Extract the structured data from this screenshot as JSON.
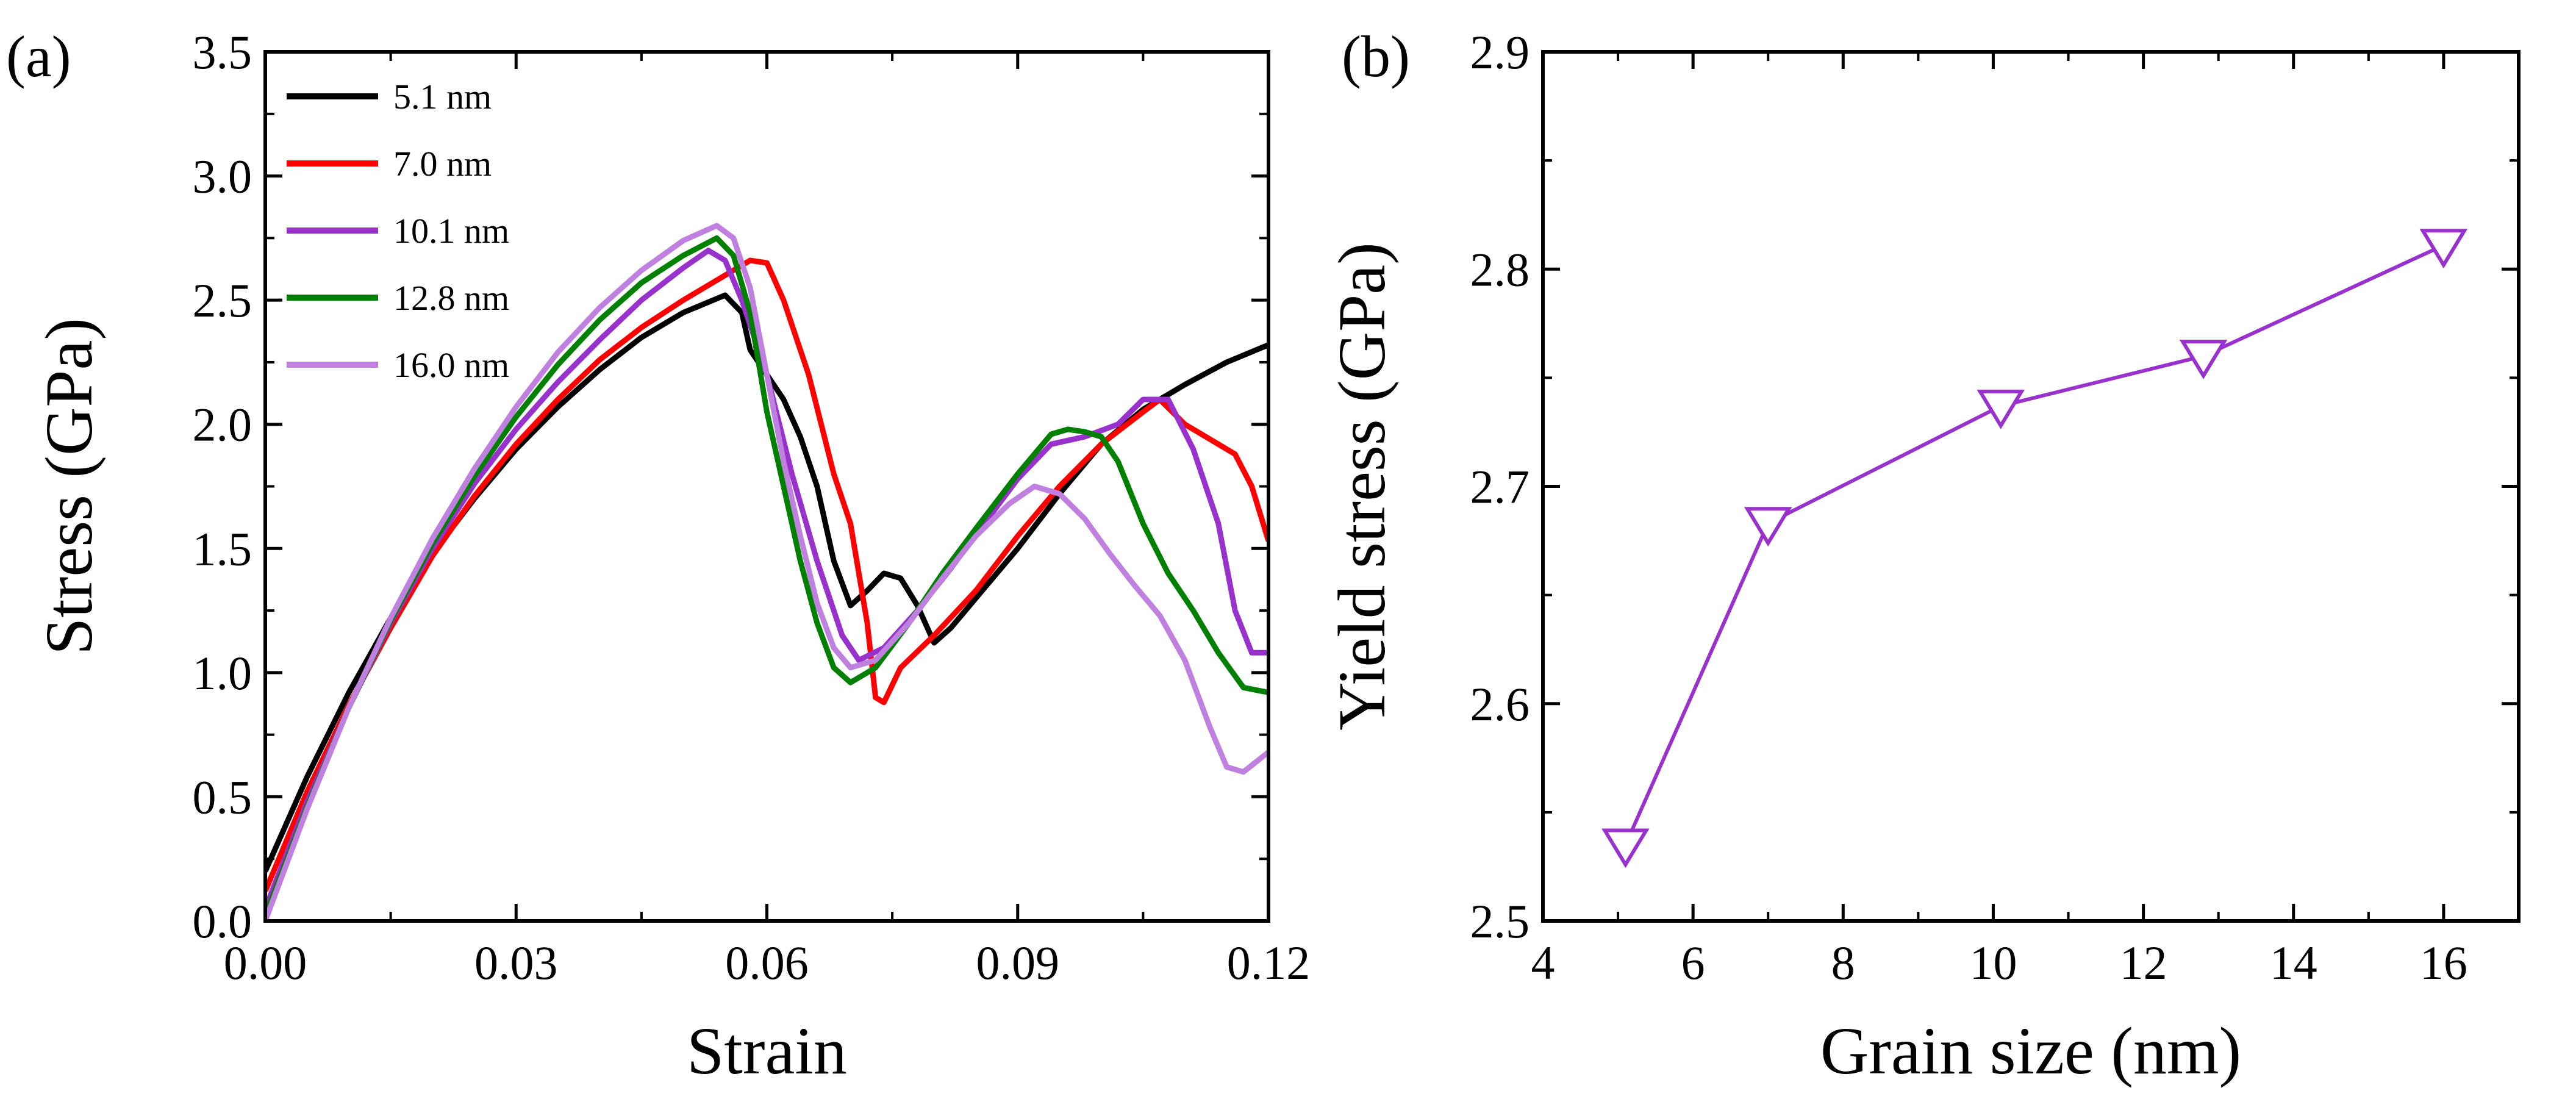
{
  "chart_data": [
    {
      "panel": "(a)",
      "type": "line",
      "xlabel": "Strain",
      "ylabel": "Stress (GPa)",
      "xlim": [
        0,
        0.12
      ],
      "ylim": [
        0,
        3.5
      ],
      "xticks": [
        "0.00",
        "0.03",
        "0.06",
        "0.09",
        "0.12"
      ],
      "yticks": [
        "0.0",
        "0.5",
        "1.0",
        "1.5",
        "2.0",
        "2.5",
        "3.0",
        "3.5"
      ],
      "legend_position": "top-left",
      "series": [
        {
          "name": "5.1 nm",
          "color": "#000000",
          "points": [
            [
              0,
              0.2
            ],
            [
              0.005,
              0.58
            ],
            [
              0.01,
              0.92
            ],
            [
              0.015,
              1.22
            ],
            [
              0.02,
              1.48
            ],
            [
              0.025,
              1.7
            ],
            [
              0.03,
              1.9
            ],
            [
              0.035,
              2.07
            ],
            [
              0.04,
              2.22
            ],
            [
              0.045,
              2.35
            ],
            [
              0.05,
              2.45
            ],
            [
              0.055,
              2.52
            ],
            [
              0.057,
              2.45
            ],
            [
              0.058,
              2.3
            ],
            [
              0.06,
              2.2
            ],
            [
              0.062,
              2.1
            ],
            [
              0.064,
              1.95
            ],
            [
              0.066,
              1.75
            ],
            [
              0.068,
              1.45
            ],
            [
              0.07,
              1.27
            ],
            [
              0.072,
              1.33
            ],
            [
              0.074,
              1.4
            ],
            [
              0.076,
              1.38
            ],
            [
              0.078,
              1.27
            ],
            [
              0.08,
              1.12
            ],
            [
              0.082,
              1.18
            ],
            [
              0.085,
              1.3
            ],
            [
              0.09,
              1.5
            ],
            [
              0.095,
              1.72
            ],
            [
              0.1,
              1.92
            ],
            [
              0.105,
              2.06
            ],
            [
              0.11,
              2.16
            ],
            [
              0.115,
              2.25
            ],
            [
              0.12,
              2.32
            ]
          ]
        },
        {
          "name": "7.0 nm",
          "color": "#ff0000",
          "points": [
            [
              0,
              0.12
            ],
            [
              0.005,
              0.52
            ],
            [
              0.01,
              0.87
            ],
            [
              0.015,
              1.18
            ],
            [
              0.02,
              1.47
            ],
            [
              0.025,
              1.71
            ],
            [
              0.03,
              1.92
            ],
            [
              0.035,
              2.1
            ],
            [
              0.04,
              2.26
            ],
            [
              0.045,
              2.39
            ],
            [
              0.05,
              2.5
            ],
            [
              0.055,
              2.6
            ],
            [
              0.058,
              2.66
            ],
            [
              0.06,
              2.65
            ],
            [
              0.062,
              2.5
            ],
            [
              0.065,
              2.2
            ],
            [
              0.068,
              1.8
            ],
            [
              0.07,
              1.6
            ],
            [
              0.072,
              1.2
            ],
            [
              0.073,
              0.9
            ],
            [
              0.074,
              0.88
            ],
            [
              0.076,
              1.02
            ],
            [
              0.08,
              1.15
            ],
            [
              0.085,
              1.33
            ],
            [
              0.09,
              1.55
            ],
            [
              0.095,
              1.75
            ],
            [
              0.1,
              1.92
            ],
            [
              0.105,
              2.05
            ],
            [
              0.107,
              2.1
            ],
            [
              0.11,
              2.0
            ],
            [
              0.113,
              1.94
            ],
            [
              0.116,
              1.88
            ],
            [
              0.118,
              1.75
            ],
            [
              0.12,
              1.53
            ]
          ]
        },
        {
          "name": "10.1 nm",
          "color": "#9932cc",
          "points": [
            [
              0,
              0.05
            ],
            [
              0.005,
              0.48
            ],
            [
              0.01,
              0.86
            ],
            [
              0.015,
              1.2
            ],
            [
              0.02,
              1.5
            ],
            [
              0.025,
              1.76
            ],
            [
              0.03,
              1.98
            ],
            [
              0.035,
              2.17
            ],
            [
              0.04,
              2.34
            ],
            [
              0.045,
              2.5
            ],
            [
              0.05,
              2.63
            ],
            [
              0.053,
              2.7
            ],
            [
              0.055,
              2.66
            ],
            [
              0.057,
              2.5
            ],
            [
              0.06,
              2.2
            ],
            [
              0.063,
              1.8
            ],
            [
              0.066,
              1.45
            ],
            [
              0.069,
              1.15
            ],
            [
              0.071,
              1.05
            ],
            [
              0.074,
              1.1
            ],
            [
              0.078,
              1.25
            ],
            [
              0.082,
              1.42
            ],
            [
              0.086,
              1.6
            ],
            [
              0.09,
              1.78
            ],
            [
              0.094,
              1.92
            ],
            [
              0.098,
              1.95
            ],
            [
              0.102,
              2.0
            ],
            [
              0.105,
              2.1
            ],
            [
              0.108,
              2.1
            ],
            [
              0.111,
              1.9
            ],
            [
              0.114,
              1.6
            ],
            [
              0.116,
              1.25
            ],
            [
              0.118,
              1.08
            ],
            [
              0.12,
              1.08
            ]
          ]
        },
        {
          "name": "12.8 nm",
          "color": "#008000",
          "points": [
            [
              0,
              0.02
            ],
            [
              0.005,
              0.46
            ],
            [
              0.01,
              0.86
            ],
            [
              0.015,
              1.21
            ],
            [
              0.02,
              1.52
            ],
            [
              0.025,
              1.79
            ],
            [
              0.03,
              2.03
            ],
            [
              0.035,
              2.24
            ],
            [
              0.04,
              2.42
            ],
            [
              0.045,
              2.57
            ],
            [
              0.05,
              2.68
            ],
            [
              0.054,
              2.75
            ],
            [
              0.056,
              2.68
            ],
            [
              0.058,
              2.45
            ],
            [
              0.06,
              2.05
            ],
            [
              0.062,
              1.75
            ],
            [
              0.064,
              1.45
            ],
            [
              0.066,
              1.2
            ],
            [
              0.068,
              1.02
            ],
            [
              0.07,
              0.96
            ],
            [
              0.073,
              1.02
            ],
            [
              0.077,
              1.2
            ],
            [
              0.081,
              1.4
            ],
            [
              0.085,
              1.58
            ],
            [
              0.09,
              1.8
            ],
            [
              0.094,
              1.96
            ],
            [
              0.096,
              1.98
            ],
            [
              0.098,
              1.97
            ],
            [
              0.1,
              1.95
            ],
            [
              0.102,
              1.85
            ],
            [
              0.105,
              1.6
            ],
            [
              0.108,
              1.4
            ],
            [
              0.111,
              1.25
            ],
            [
              0.114,
              1.08
            ],
            [
              0.117,
              0.94
            ],
            [
              0.12,
              0.92
            ]
          ]
        },
        {
          "name": "16.0 nm",
          "color": "#c080e0",
          "points": [
            [
              0,
              0.0
            ],
            [
              0.005,
              0.45
            ],
            [
              0.01,
              0.86
            ],
            [
              0.015,
              1.22
            ],
            [
              0.02,
              1.54
            ],
            [
              0.025,
              1.82
            ],
            [
              0.03,
              2.07
            ],
            [
              0.035,
              2.29
            ],
            [
              0.04,
              2.47
            ],
            [
              0.045,
              2.62
            ],
            [
              0.05,
              2.74
            ],
            [
              0.054,
              2.8
            ],
            [
              0.056,
              2.75
            ],
            [
              0.058,
              2.55
            ],
            [
              0.06,
              2.2
            ],
            [
              0.062,
              1.85
            ],
            [
              0.064,
              1.55
            ],
            [
              0.066,
              1.28
            ],
            [
              0.068,
              1.1
            ],
            [
              0.07,
              1.02
            ],
            [
              0.073,
              1.05
            ],
            [
              0.077,
              1.2
            ],
            [
              0.081,
              1.38
            ],
            [
              0.085,
              1.55
            ],
            [
              0.089,
              1.68
            ],
            [
              0.092,
              1.75
            ],
            [
              0.095,
              1.72
            ],
            [
              0.098,
              1.62
            ],
            [
              0.101,
              1.48
            ],
            [
              0.104,
              1.35
            ],
            [
              0.107,
              1.23
            ],
            [
              0.11,
              1.05
            ],
            [
              0.113,
              0.78
            ],
            [
              0.115,
              0.62
            ],
            [
              0.117,
              0.6
            ],
            [
              0.12,
              0.68
            ]
          ]
        }
      ]
    },
    {
      "panel": "(b)",
      "type": "line",
      "marker": "open-triangle-down",
      "color": "#9932cc",
      "xlabel": "Grain size (nm)",
      "ylabel": "Yield stress (GPa)",
      "xlim": [
        4,
        17
      ],
      "ylim": [
        2.5,
        2.9
      ],
      "xticks": [
        "4",
        "6",
        "8",
        "10",
        "12",
        "14",
        "16"
      ],
      "yticks": [
        "2.5",
        "2.6",
        "2.7",
        "2.8",
        "2.9"
      ],
      "x": [
        5.1,
        7.0,
        10.1,
        12.8,
        16.0
      ],
      "y": [
        2.535,
        2.683,
        2.737,
        2.76,
        2.811
      ]
    }
  ]
}
